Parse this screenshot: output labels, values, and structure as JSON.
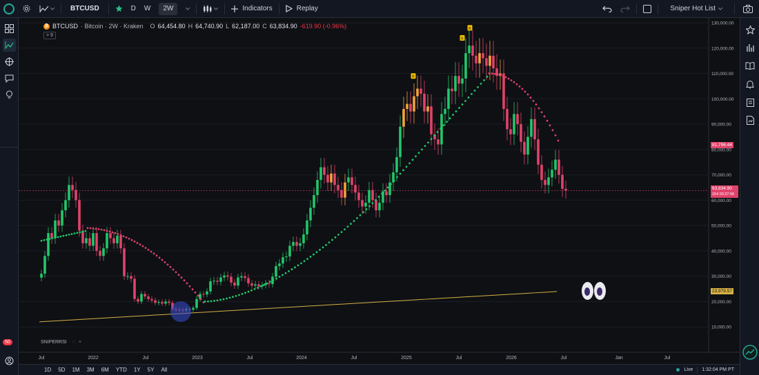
{
  "topbar": {
    "symbol": "BTCUSD",
    "interval_d": "D",
    "interval_w": "W",
    "interval_2w": "2W",
    "indicators": "Indicators",
    "replay": "Replay",
    "watchlist": "Sniper Hot List"
  },
  "legend": {
    "symbol": "BTCUSD",
    "description": "· Bitcoin · 2W · Kraken",
    "open_label": "O",
    "open": "64,454.80",
    "high_label": "H",
    "high": "64,740.90",
    "low_label": "L",
    "low": "62,187.00",
    "close_label": "C",
    "close": "63,834.90",
    "change": "-619.90 (-0.96%)",
    "collapse": "9"
  },
  "indicator_label": "SNIPERRSI",
  "left_badge": "50",
  "price_axis": {
    "labels": [
      "130,000.00",
      "120,000.00",
      "110,000.00",
      "100,000.00",
      "90,000.00",
      "80,000.00",
      "70,000.00",
      "60,000.00",
      "50,000.00",
      "40,000.00",
      "30,000.00",
      "20,000.00",
      "10,000.00"
    ],
    "tags": {
      "resistance": "81,796.44",
      "last": "63,834.90",
      "countdown": "154 03:27:56",
      "ma": "23,979.57"
    }
  },
  "time_axis": {
    "labels": [
      "Jul",
      "2022",
      "Jul",
      "2023",
      "Jul",
      "2024",
      "Jul",
      "2025",
      "Jul",
      "2026",
      "Jul",
      "Jan",
      "Jul"
    ]
  },
  "bottombar": {
    "ranges": [
      "1D",
      "5D",
      "1M",
      "3M",
      "6M",
      "YTD",
      "1Y",
      "5Y",
      "All"
    ],
    "live": "Live",
    "time": "1:32:04 PM PT"
  },
  "colors": {
    "up": "#22c76a",
    "down": "#e0436b",
    "orange": "#f5a23a",
    "ma": "#d8b144",
    "background": "#0e1014"
  },
  "markers": [
    "B",
    "B",
    "B"
  ],
  "chart_data": {
    "type": "candlestick",
    "symbol": "BTCUSD",
    "interval": "2W",
    "ylim": [
      0,
      130000
    ],
    "grid": true,
    "last_price": 63834.9,
    "price_levels": [
      81796.44,
      63834.9,
      23979.57
    ]
  }
}
